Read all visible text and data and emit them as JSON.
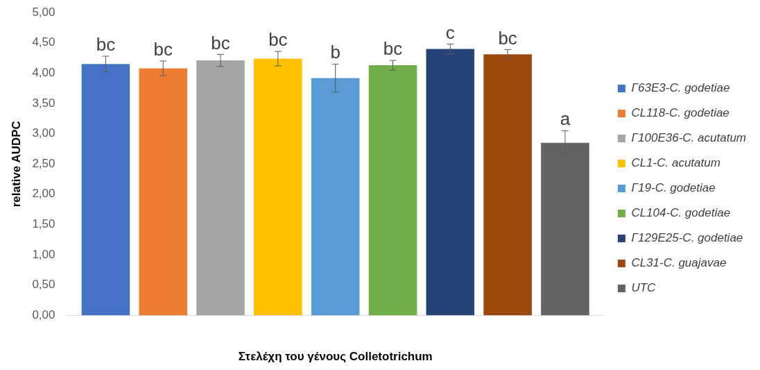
{
  "chart_data": {
    "type": "bar",
    "xlabel": "Στελέχη του γένους Colletotrichum",
    "ylabel": "relative AUDPC",
    "categories": [
      null
    ],
    "series": [
      {
        "name": "Γ63Ε3-C. godetiae",
        "color": "#4472c4",
        "values": [
          4.15
        ],
        "errors": [
          0.13
        ],
        "value_labels": [
          "bc"
        ]
      },
      {
        "name": "CL118-C. godetiae",
        "color": "#ed7d31",
        "values": [
          4.08
        ],
        "errors": [
          0.12
        ],
        "value_labels": [
          "bc"
        ]
      },
      {
        "name": "Γ100Ε36-C. acutatum",
        "color": "#a5a5a5",
        "values": [
          4.21
        ],
        "errors": [
          0.1
        ],
        "value_labels": [
          "bc"
        ]
      },
      {
        "name": "CL1-C. acutatum",
        "color": "#ffc000",
        "values": [
          4.24
        ],
        "errors": [
          0.12
        ],
        "value_labels": [
          "bc"
        ]
      },
      {
        "name": "Γ19-C. godetiae",
        "color": "#5b9bd5",
        "values": [
          3.92
        ],
        "errors": [
          0.23
        ],
        "value_labels": [
          "b"
        ]
      },
      {
        "name": "CL104-C. godetiae",
        "color": "#70ad47",
        "values": [
          4.13
        ],
        "errors": [
          0.08
        ],
        "value_labels": [
          "bc"
        ]
      },
      {
        "name": "Γ129Ε25-C. godetiae",
        "color": "#264478",
        "values": [
          4.4
        ],
        "errors": [
          0.08
        ],
        "value_labels": [
          "c"
        ]
      },
      {
        "name": "CL31-C. guajavae",
        "color": "#9e480e",
        "values": [
          4.31
        ],
        "errors": [
          0.08
        ],
        "value_labels": [
          "bc"
        ]
      },
      {
        "name": "UTC",
        "color": "#636363",
        "values": [
          2.85
        ],
        "errors": [
          0.2
        ],
        "value_labels": [
          "a"
        ]
      }
    ],
    "ylim": [
      0,
      5
    ],
    "yticks": [
      {
        "value": 0,
        "label": "0,00"
      },
      {
        "value": 0.5,
        "label": "0,50"
      },
      {
        "value": 1,
        "label": "1,00"
      },
      {
        "value": 1.5,
        "label": "1,50"
      },
      {
        "value": 2,
        "label": "2,00"
      },
      {
        "value": 2.5,
        "label": "2,50"
      },
      {
        "value": 3,
        "label": "3,00"
      },
      {
        "value": 3.5,
        "label": "3,50"
      },
      {
        "value": 4,
        "label": "4,00"
      },
      {
        "value": 4.5,
        "label": "4,50"
      },
      {
        "value": 5,
        "label": "5,00"
      }
    ],
    "legend": "right"
  }
}
